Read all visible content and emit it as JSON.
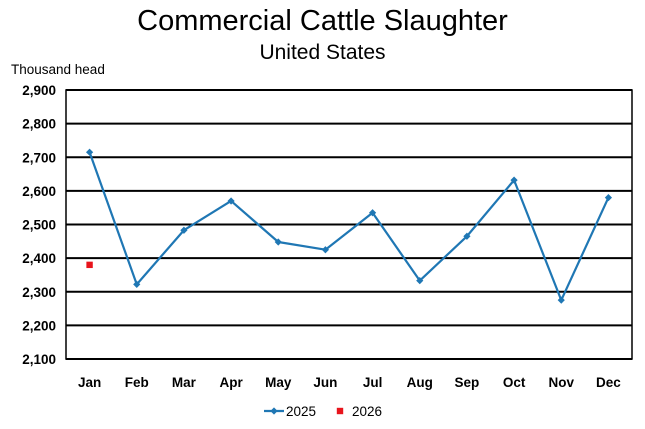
{
  "chart_data": {
    "type": "line",
    "title": "Commercial Cattle Slaughter",
    "subtitle": "United States",
    "ylabel": "Thousand head",
    "xlabel": "",
    "categories": [
      "Jan",
      "Feb",
      "Mar",
      "Apr",
      "May",
      "Jun",
      "Jul",
      "Aug",
      "Sep",
      "Oct",
      "Nov",
      "Dec"
    ],
    "ylim": [
      2100,
      2900
    ],
    "yticks": [
      2100,
      2200,
      2300,
      2400,
      2500,
      2600,
      2700,
      2800,
      2900
    ],
    "ytick_labels": [
      "2,100",
      "2,200",
      "2,300",
      "2,400",
      "2,500",
      "2,600",
      "2,700",
      "2,800",
      "2,900"
    ],
    "grid": true,
    "legend_position": "bottom",
    "series": [
      {
        "name": "2025",
        "color": "#1f77b4",
        "marker": "diamond",
        "values": [
          2715,
          2322,
          2483,
          2570,
          2448,
          2425,
          2535,
          2333,
          2465,
          2632,
          2275,
          2580
        ]
      },
      {
        "name": "2026",
        "color": "#e8141c",
        "marker": "square",
        "values": [
          2380,
          null,
          null,
          null,
          null,
          null,
          null,
          null,
          null,
          null,
          null,
          null
        ]
      }
    ]
  }
}
